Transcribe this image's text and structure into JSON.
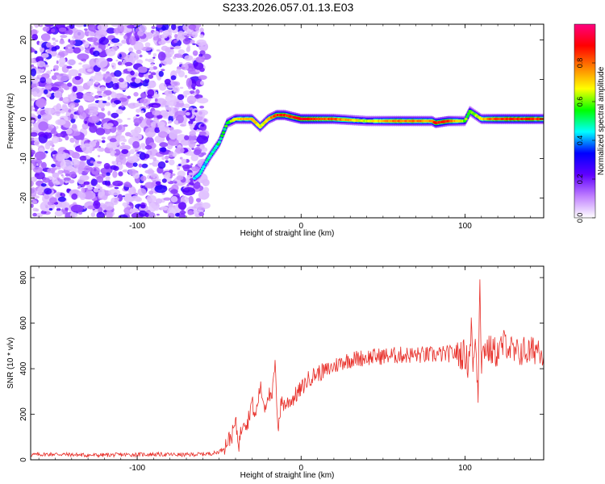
{
  "figure": {
    "title": "S233.2026.057.01.13.E03"
  },
  "chart_data": [
    {
      "type": "heatmap",
      "xlabel": "Height of straight line (km)",
      "ylabel": "Frequency (Hz)",
      "xlim": [
        -165,
        148
      ],
      "ylim": [
        -25,
        24
      ],
      "xticks": [
        -100,
        0,
        100
      ],
      "yticks": [
        -20,
        -10,
        0,
        10,
        20
      ],
      "grid": false,
      "colorbar": {
        "label": "Normalized spectral amplitude",
        "range": [
          0,
          1
        ],
        "ticks": [
          0.0,
          0.2,
          0.4,
          0.6,
          0.8
        ],
        "tick_labels": [
          "0.0",
          "0.2",
          "0.4",
          "0.6",
          "0.8"
        ],
        "colors": [
          "#ffffff",
          "#c080ff",
          "#6000ff",
          "#0000ff",
          "#00ffff",
          "#00ff00",
          "#ffff00",
          "#ff8000",
          "#ff0000",
          "#ff0080"
        ]
      },
      "noise_region": {
        "x_range": [
          -165,
          -58
        ],
        "frequency_range": [
          -25,
          24
        ],
        "amplitude": "low, scattered"
      },
      "ridge": {
        "x": [
          -65,
          -62,
          -58,
          -55,
          -50,
          -45,
          -40,
          -30,
          -25,
          -20,
          -15,
          -10,
          0,
          20,
          40,
          60,
          80,
          82,
          90,
          100,
          103,
          110,
          120,
          140,
          148
        ],
        "frequency": [
          -15,
          -14,
          -11,
          -9,
          -6,
          -1,
          0,
          0,
          -2,
          0,
          1,
          1,
          0,
          0,
          -0.5,
          -0.5,
          -0.5,
          -1,
          -0.5,
          -0.5,
          2,
          0,
          0,
          0,
          0
        ],
        "amplitude": [
          0.4,
          0.45,
          0.45,
          0.5,
          0.5,
          0.55,
          0.7,
          0.75,
          0.65,
          0.7,
          0.85,
          0.85,
          0.9,
          0.8,
          0.65,
          0.8,
          0.75,
          0.9,
          0.85,
          0.6,
          0.55,
          0.7,
          0.85,
          0.85,
          0.8
        ]
      }
    },
    {
      "type": "line",
      "xlabel": "Height of straight line (km)",
      "ylabel": "SNR (10 * v/v)",
      "xlim": [
        -165,
        148
      ],
      "ylim": [
        0,
        850
      ],
      "xticks": [
        -100,
        0,
        100
      ],
      "yticks": [
        0,
        200,
        400,
        600,
        800
      ],
      "grid": false,
      "color": "#e8302a",
      "series": [
        {
          "x": [
            -165,
            -150,
            -130,
            -110,
            -90,
            -70,
            -60,
            -52,
            -48,
            -45,
            -42,
            -40,
            -38,
            -35,
            -33,
            -30,
            -28,
            -25,
            -22,
            -20,
            -18,
            -16,
            -14,
            -12,
            -10,
            -5,
            0,
            5,
            10,
            15,
            20,
            25,
            30,
            40,
            50,
            60,
            70,
            80,
            90,
            95,
            100,
            102,
            104,
            105,
            106,
            108,
            109,
            110,
            112,
            115,
            120,
            125,
            130,
            135,
            140,
            145,
            148
          ],
          "y": [
            22,
            25,
            20,
            22,
            24,
            22,
            25,
            30,
            45,
            80,
            110,
            165,
            70,
            190,
            150,
            260,
            180,
            320,
            230,
            300,
            250,
            420,
            140,
            260,
            240,
            270,
            310,
            360,
            380,
            390,
            410,
            430,
            440,
            450,
            455,
            460,
            460,
            460,
            465,
            470,
            460,
            420,
            600,
            350,
            560,
            300,
            820,
            430,
            500,
            480,
            470,
            520,
            460,
            480,
            470,
            500,
            470
          ]
        }
      ]
    }
  ]
}
